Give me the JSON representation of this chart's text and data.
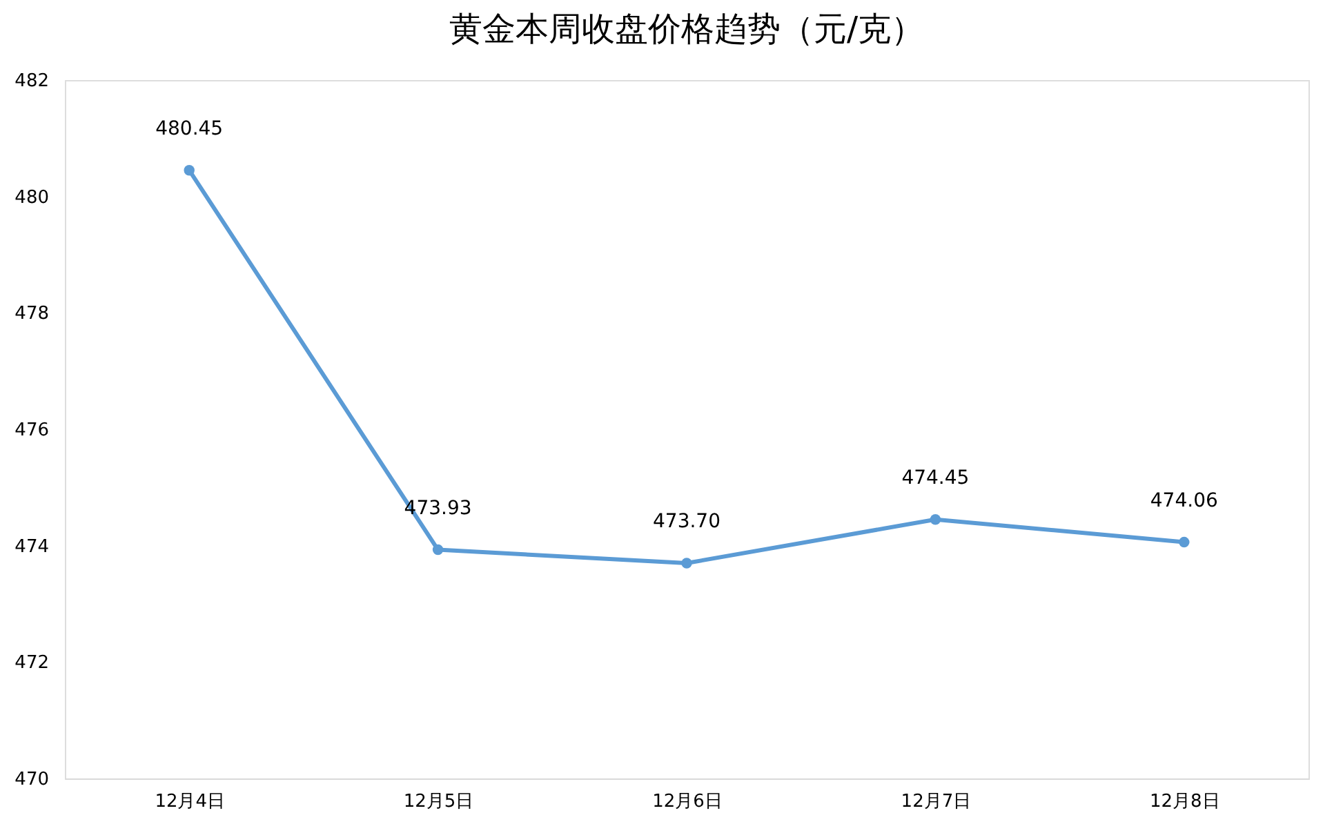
{
  "chart_data": {
    "type": "line",
    "title": "黄金本周收盘价格趋势（元/克）",
    "categories": [
      "12月4日",
      "12月5日",
      "12月6日",
      "12月7日",
      "12月8日"
    ],
    "series": [
      {
        "color": "#5b9bd5",
        "values": [
          480.45,
          473.93,
          473.7,
          474.45,
          474.06
        ]
      }
    ],
    "ylim": [
      470,
      482
    ],
    "yticks": [
      470,
      472,
      474,
      476,
      478,
      480,
      482
    ],
    "value_labels": [
      "480.45",
      "473.93",
      "473.70",
      "474.45",
      "474.06"
    ],
    "grid": false,
    "marker": "circle",
    "line_style": "solid"
  }
}
